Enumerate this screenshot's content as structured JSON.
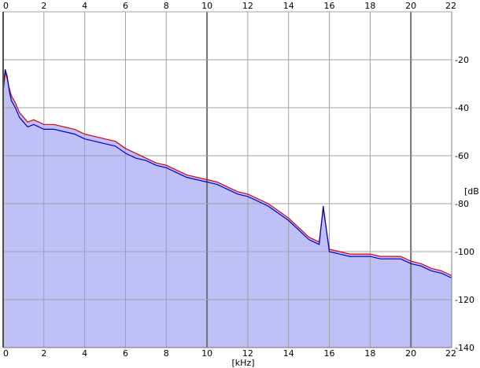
{
  "chart_data": {
    "type": "area",
    "title": "",
    "xlabel": "[kHz]",
    "ylabel": "[dB]",
    "xlim": [
      0,
      22
    ],
    "ylim": [
      -140,
      0
    ],
    "x_ticks": [
      0,
      2,
      4,
      6,
      8,
      10,
      12,
      14,
      16,
      18,
      20,
      22
    ],
    "x_tick_labels_top": [
      "0",
      "2",
      "4",
      "6",
      "8",
      "10",
      "12",
      "14",
      "16",
      "18",
      "20",
      "22"
    ],
    "x_tick_labels_bottom": [
      "0",
      "2",
      "4",
      "6",
      "8",
      "10",
      "12",
      "14",
      "16",
      "18",
      "20",
      "22"
    ],
    "y_ticks": [
      0,
      -20,
      -40,
      -60,
      -80,
      -100,
      -120,
      -140
    ],
    "y_tick_labels": [
      "",
      "-20",
      "-40",
      "-60",
      "-80",
      "-100",
      "-120",
      "-140"
    ],
    "grid": true,
    "fill_color": "#c0c0f8",
    "grid_color": "#a0a0a0",
    "series": [
      {
        "color": "#dd0000",
        "x": [
          0,
          0.1,
          0.2,
          0.3,
          0.4,
          0.6,
          0.8,
          1.0,
          1.2,
          1.5,
          2.0,
          2.5,
          3.0,
          3.5,
          4.0,
          4.5,
          5.0,
          5.5,
          6.0,
          6.5,
          7.0,
          7.5,
          8.0,
          8.5,
          9.0,
          9.5,
          10.0,
          10.5,
          11.0,
          11.5,
          12.0,
          12.5,
          13.0,
          13.5,
          14.0,
          14.5,
          15.0,
          15.5,
          15.7,
          16.0,
          16.5,
          17.0,
          17.5,
          18.0,
          18.5,
          19.0,
          19.5,
          20.0,
          20.5,
          21.0,
          21.5,
          22.0
        ],
        "values": [
          -34,
          -25,
          -28,
          -32,
          -35,
          -38,
          -42,
          -44,
          -46,
          -45,
          -47,
          -47,
          -48,
          -49,
          -51,
          -52,
          -53,
          -54,
          -57,
          -59,
          -61,
          -63,
          -64,
          -66,
          -68,
          -69,
          -70,
          -71,
          -73,
          -75,
          -76,
          -78,
          -80,
          -83,
          -86,
          -90,
          -94,
          -96,
          -82,
          -99,
          -100,
          -101,
          -101,
          -101,
          -102,
          -102,
          -102,
          -104,
          -105,
          -107,
          -108,
          -110
        ]
      },
      {
        "color": "#0000c8",
        "x": [
          0,
          0.1,
          0.2,
          0.3,
          0.4,
          0.6,
          0.8,
          1.0,
          1.2,
          1.5,
          2.0,
          2.5,
          3.0,
          3.5,
          4.0,
          4.5,
          5.0,
          5.5,
          6.0,
          6.5,
          7.0,
          7.5,
          8.0,
          8.5,
          9.0,
          9.5,
          10.0,
          10.5,
          11.0,
          11.5,
          12.0,
          12.5,
          13.0,
          13.5,
          14.0,
          14.5,
          15.0,
          15.5,
          15.7,
          16.0,
          16.5,
          17.0,
          17.5,
          18.0,
          18.5,
          19.0,
          19.5,
          20.0,
          20.5,
          21.0,
          21.5,
          22.0
        ],
        "values": [
          -32,
          -24,
          -27,
          -33,
          -37,
          -40,
          -44,
          -46,
          -48,
          -47,
          -49,
          -49,
          -50,
          -51,
          -53,
          -54,
          -55,
          -56,
          -59,
          -61,
          -62,
          -64,
          -65,
          -67,
          -69,
          -70,
          -71,
          -72,
          -74,
          -76,
          -77,
          -79,
          -81,
          -84,
          -87,
          -91,
          -95,
          -97,
          -81,
          -100,
          -101,
          -102,
          -102,
          -102,
          -103,
          -103,
          -103,
          -105,
          -106,
          -108,
          -109,
          -111
        ]
      }
    ]
  }
}
